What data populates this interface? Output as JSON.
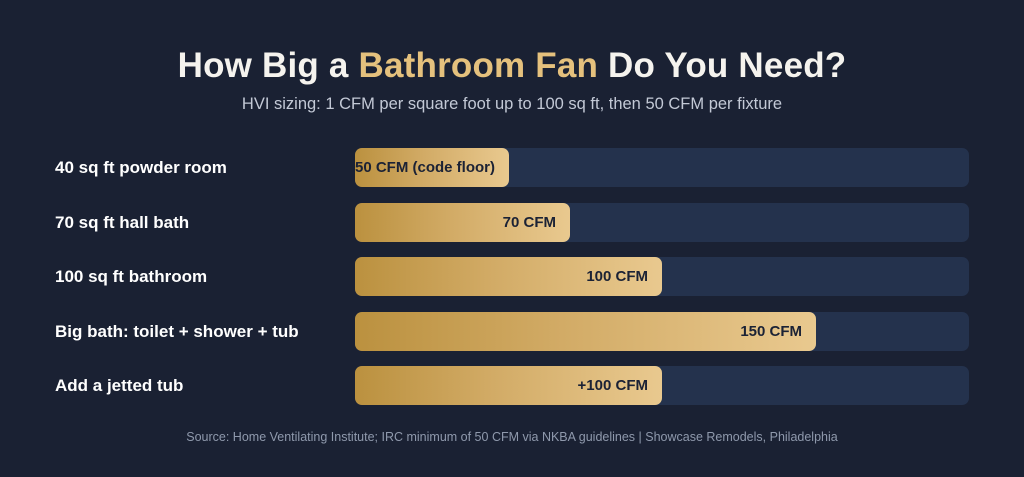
{
  "title": {
    "pre": "How Big a ",
    "accent": "Bathroom Fan",
    "post": " Do You Need?"
  },
  "subtitle": "HVI sizing: 1 CFM per square foot up to 100 sq ft, then 50 CFM per fixture",
  "source": "Source: Home Ventilating Institute; IRC minimum of 50 CFM via NKBA guidelines | Showcase Remodels, Philadelphia",
  "colors": {
    "background": "#1a2133",
    "accent": "#e5c17d",
    "track": "#24324d",
    "bar_start": "#bb913f",
    "bar_end": "#e9c98f",
    "value_text": "#1b2235"
  },
  "chart_data": {
    "type": "bar",
    "orientation": "horizontal",
    "categories": [
      "40 sq ft powder room",
      "70 sq ft hall bath",
      "100 sq ft bathroom",
      "Big bath: toilet + shower + tub",
      "Add a jetted tub"
    ],
    "values": [
      50,
      70,
      100,
      150,
      100
    ],
    "data_labels": [
      "50 CFM (code floor)",
      "70 CFM",
      "100 CFM",
      "150 CFM",
      "+100 CFM"
    ],
    "unit": "CFM",
    "xlim": [
      0,
      200
    ],
    "grid": false,
    "legend": "none"
  }
}
